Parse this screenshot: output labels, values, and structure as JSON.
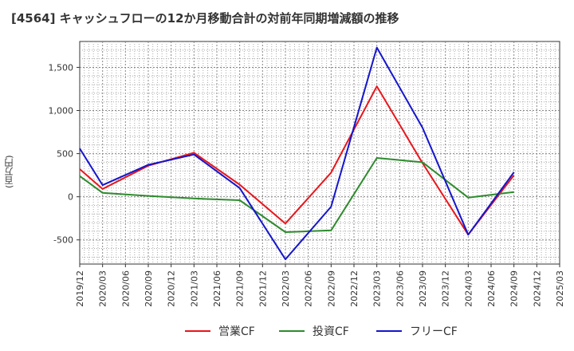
{
  "chart_data": {
    "type": "line",
    "title": "[4564]  キャッシュフローの12か月移動合計の対前年同期増減額の推移",
    "ylabel": "(百万円)",
    "ylim": [
      -780,
      1800
    ],
    "yticks": [
      -500,
      0,
      500,
      1000,
      1500
    ],
    "ytick_labels": [
      "-500",
      "0",
      "500",
      "1,000",
      "1,500"
    ],
    "categories": [
      "2019/12",
      "2020/03",
      "2020/06",
      "2020/09",
      "2020/12",
      "2021/03",
      "2021/06",
      "2021/09",
      "2021/12",
      "2022/03",
      "2022/06",
      "2022/09",
      "2022/12",
      "2023/03",
      "2023/06",
      "2023/09",
      "2023/12",
      "2024/03",
      "2024/06",
      "2024/09",
      "2024/12",
      "2025/03"
    ],
    "grid": true,
    "legend_position": "bottom",
    "series": [
      {
        "name": "営業CF",
        "color": "#e8161c",
        "points": [
          [
            "2019/12",
            320
          ],
          [
            "2020/03",
            90
          ],
          [
            "2020/09",
            360
          ],
          [
            "2021/03",
            510
          ],
          [
            "2021/09",
            140
          ],
          [
            "2022/03",
            -310
          ],
          [
            "2022/09",
            280
          ],
          [
            "2023/03",
            1280
          ],
          [
            "2023/09",
            390
          ],
          [
            "2024/03",
            -440
          ],
          [
            "2024/09",
            250
          ]
        ]
      },
      {
        "name": "投資CF",
        "color": "#2e8b2e",
        "points": [
          [
            "2019/12",
            240
          ],
          [
            "2020/03",
            45
          ],
          [
            "2020/09",
            10
          ],
          [
            "2021/03",
            -20
          ],
          [
            "2021/09",
            -40
          ],
          [
            "2022/03",
            -410
          ],
          [
            "2022/09",
            -390
          ],
          [
            "2023/03",
            450
          ],
          [
            "2023/09",
            400
          ],
          [
            "2024/03",
            -10
          ],
          [
            "2024/09",
            55
          ]
        ]
      },
      {
        "name": "フリーCF",
        "color": "#1515cc",
        "points": [
          [
            "2019/12",
            560
          ],
          [
            "2020/03",
            135
          ],
          [
            "2020/09",
            370
          ],
          [
            "2021/03",
            490
          ],
          [
            "2021/09",
            100
          ],
          [
            "2022/03",
            -725
          ],
          [
            "2022/09",
            -115
          ],
          [
            "2023/03",
            1730
          ],
          [
            "2023/09",
            800
          ],
          [
            "2024/03",
            -440
          ],
          [
            "2024/09",
            285
          ]
        ]
      }
    ]
  }
}
